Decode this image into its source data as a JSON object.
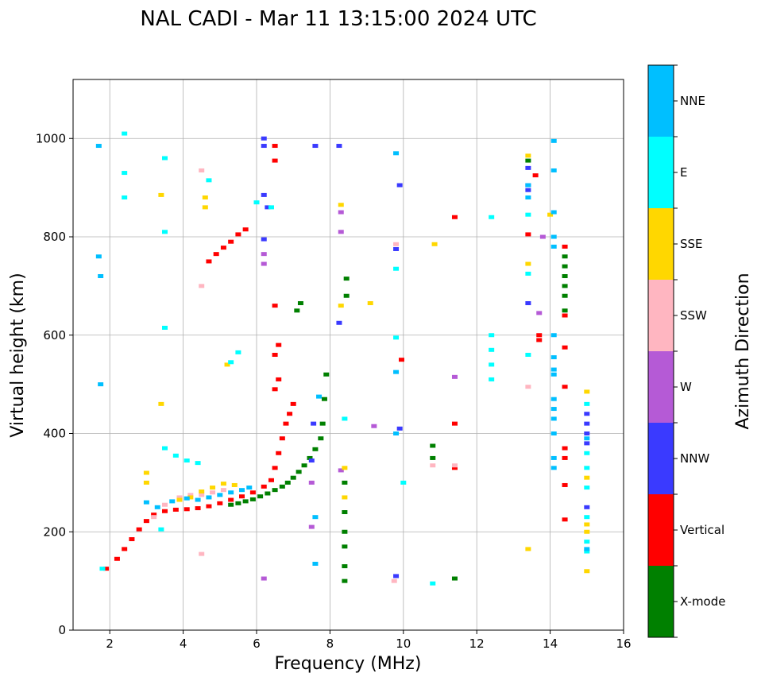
{
  "chart_data": {
    "type": "scatter",
    "title": "NAL CADI - Mar 11 13:15:00 2024 UTC",
    "xlabel": "Frequency (MHz)",
    "ylabel": "Virtual height (km)",
    "xlim": [
      1,
      16
    ],
    "ylim": [
      0,
      1120
    ],
    "xticks": [
      2,
      4,
      6,
      8,
      10,
      12,
      14,
      16
    ],
    "yticks": [
      0,
      200,
      400,
      600,
      800,
      1000
    ],
    "grid": true,
    "colorbar": {
      "title": "Azimuth Direction",
      "categories": [
        {
          "name": "X-mode",
          "color": "#008000"
        },
        {
          "name": "Vertical",
          "color": "#ff0000"
        },
        {
          "name": "NNW",
          "color": "#3a3aff"
        },
        {
          "name": "W",
          "color": "#b55ad6"
        },
        {
          "name": "SSW",
          "color": "#ffb6c1"
        },
        {
          "name": "SSE",
          "color": "#ffd700"
        },
        {
          "name": "E",
          "color": "#00ffff"
        },
        {
          "name": "NNE",
          "color": "#00bfff"
        }
      ]
    },
    "series": [
      {
        "name": "X-mode",
        "points": [
          [
            5.3,
            255
          ],
          [
            5.5,
            258
          ],
          [
            5.7,
            262
          ],
          [
            5.9,
            266
          ],
          [
            6.1,
            272
          ],
          [
            6.3,
            278
          ],
          [
            6.5,
            285
          ],
          [
            6.7,
            292
          ],
          [
            6.85,
            300
          ],
          [
            7.0,
            310
          ],
          [
            7.15,
            322
          ],
          [
            7.3,
            335
          ],
          [
            7.45,
            350
          ],
          [
            7.6,
            368
          ],
          [
            7.75,
            390
          ],
          [
            7.8,
            420
          ],
          [
            7.85,
            470
          ],
          [
            7.9,
            520
          ],
          [
            7.1,
            650
          ],
          [
            7.2,
            665
          ],
          [
            8.4,
            100
          ],
          [
            8.4,
            130
          ],
          [
            8.4,
            170
          ],
          [
            8.4,
            200
          ],
          [
            8.4,
            240
          ],
          [
            8.4,
            300
          ],
          [
            8.45,
            680
          ],
          [
            8.45,
            715
          ],
          [
            10.8,
            350
          ],
          [
            10.8,
            375
          ],
          [
            11.4,
            105
          ],
          [
            13.4,
            955
          ],
          [
            14.4,
            650
          ],
          [
            14.4,
            680
          ],
          [
            14.4,
            700
          ],
          [
            14.4,
            720
          ],
          [
            14.4,
            740
          ],
          [
            14.4,
            760
          ]
        ]
      },
      {
        "name": "Vertical",
        "points": [
          [
            1.9,
            125
          ],
          [
            2.2,
            145
          ],
          [
            2.4,
            165
          ],
          [
            2.6,
            185
          ],
          [
            2.8,
            205
          ],
          [
            3.0,
            222
          ],
          [
            3.2,
            235
          ],
          [
            3.5,
            242
          ],
          [
            3.8,
            245
          ],
          [
            4.1,
            246
          ],
          [
            4.4,
            248
          ],
          [
            4.7,
            252
          ],
          [
            5.0,
            258
          ],
          [
            5.3,
            265
          ],
          [
            5.6,
            272
          ],
          [
            5.9,
            280
          ],
          [
            6.2,
            292
          ],
          [
            6.4,
            305
          ],
          [
            6.5,
            330
          ],
          [
            6.6,
            360
          ],
          [
            6.7,
            390
          ],
          [
            6.8,
            420
          ],
          [
            6.9,
            440
          ],
          [
            7.0,
            460
          ],
          [
            6.5,
            490
          ],
          [
            6.6,
            510
          ],
          [
            6.5,
            560
          ],
          [
            6.6,
            580
          ],
          [
            6.5,
            660
          ],
          [
            4.7,
            750
          ],
          [
            4.9,
            765
          ],
          [
            5.1,
            778
          ],
          [
            5.3,
            790
          ],
          [
            5.5,
            805
          ],
          [
            5.7,
            815
          ],
          [
            6.5,
            955
          ],
          [
            6.5,
            985
          ],
          [
            9.95,
            550
          ],
          [
            11.4,
            330
          ],
          [
            11.4,
            420
          ],
          [
            11.4,
            840
          ],
          [
            13.6,
            925
          ],
          [
            13.4,
            805
          ],
          [
            13.7,
            590
          ],
          [
            13.7,
            600
          ],
          [
            14.4,
            225
          ],
          [
            14.4,
            295
          ],
          [
            14.4,
            350
          ],
          [
            14.4,
            370
          ],
          [
            14.4,
            495
          ],
          [
            14.4,
            575
          ],
          [
            14.4,
            640
          ],
          [
            14.4,
            780
          ]
        ]
      },
      {
        "name": "NNW",
        "points": [
          [
            6.2,
            1000
          ],
          [
            6.2,
            985
          ],
          [
            6.2,
            885
          ],
          [
            6.2,
            795
          ],
          [
            7.6,
            985
          ],
          [
            8.25,
            985
          ],
          [
            8.25,
            625
          ],
          [
            9.9,
            905
          ],
          [
            9.9,
            410
          ],
          [
            9.8,
            775
          ],
          [
            9.8,
            110
          ],
          [
            13.4,
            940
          ],
          [
            13.4,
            905
          ],
          [
            13.4,
            895
          ],
          [
            13.4,
            665
          ],
          [
            15.0,
            380
          ],
          [
            15.0,
            400
          ],
          [
            15.0,
            420
          ],
          [
            15.0,
            440
          ],
          [
            15.0,
            250
          ],
          [
            6.3,
            860
          ],
          [
            7.55,
            420
          ],
          [
            7.5,
            345
          ]
        ]
      },
      {
        "name": "W",
        "points": [
          [
            6.2,
            745
          ],
          [
            6.2,
            765
          ],
          [
            6.2,
            105
          ],
          [
            8.3,
            810
          ],
          [
            8.3,
            850
          ],
          [
            8.3,
            325
          ],
          [
            9.2,
            415
          ],
          [
            7.5,
            210
          ],
          [
            7.5,
            300
          ],
          [
            11.4,
            515
          ],
          [
            13.7,
            645
          ],
          [
            13.8,
            800
          ]
        ]
      },
      {
        "name": "SSW",
        "points": [
          [
            3.2,
            230
          ],
          [
            3.5,
            255
          ],
          [
            3.9,
            270
          ],
          [
            4.2,
            275
          ],
          [
            4.5,
            275
          ],
          [
            4.8,
            280
          ],
          [
            5.1,
            285
          ],
          [
            11.4,
            335
          ],
          [
            13.4,
            495
          ],
          [
            9.8,
            785
          ],
          [
            4.5,
            700
          ],
          [
            4.5,
            935
          ],
          [
            4.5,
            155
          ],
          [
            9.75,
            100
          ],
          [
            10.8,
            335
          ]
        ]
      },
      {
        "name": "SSE",
        "points": [
          [
            3.0,
            300
          ],
          [
            3.0,
            320
          ],
          [
            3.9,
            265
          ],
          [
            4.2,
            270
          ],
          [
            4.5,
            282
          ],
          [
            4.8,
            290
          ],
          [
            5.1,
            298
          ],
          [
            5.4,
            295
          ],
          [
            3.4,
            460
          ],
          [
            3.4,
            885
          ],
          [
            4.6,
            860
          ],
          [
            4.6,
            880
          ],
          [
            5.2,
            540
          ],
          [
            8.3,
            865
          ],
          [
            8.3,
            660
          ],
          [
            8.4,
            270
          ],
          [
            8.4,
            330
          ],
          [
            9.1,
            665
          ],
          [
            10.85,
            785
          ],
          [
            13.4,
            745
          ],
          [
            13.4,
            965
          ],
          [
            13.4,
            165
          ],
          [
            15.0,
            485
          ],
          [
            15.0,
            310
          ],
          [
            15.0,
            200
          ],
          [
            15.0,
            215
          ],
          [
            15.0,
            120
          ],
          [
            14.0,
            845
          ]
        ]
      },
      {
        "name": "E",
        "points": [
          [
            2.4,
            1010
          ],
          [
            2.4,
            930
          ],
          [
            2.4,
            880
          ],
          [
            3.5,
            370
          ],
          [
            3.8,
            355
          ],
          [
            4.1,
            345
          ],
          [
            4.4,
            340
          ],
          [
            3.5,
            960
          ],
          [
            3.5,
            810
          ],
          [
            3.5,
            615
          ],
          [
            4.7,
            915
          ],
          [
            5.3,
            545
          ],
          [
            5.5,
            565
          ],
          [
            6.0,
            870
          ],
          [
            6.4,
            860
          ],
          [
            8.4,
            430
          ],
          [
            9.8,
            735
          ],
          [
            9.8,
            595
          ],
          [
            10.0,
            300
          ],
          [
            10.8,
            95
          ],
          [
            12.4,
            840
          ],
          [
            12.4,
            600
          ],
          [
            12.4,
            570
          ],
          [
            12.4,
            540
          ],
          [
            12.4,
            510
          ],
          [
            13.4,
            845
          ],
          [
            13.4,
            725
          ],
          [
            13.4,
            560
          ],
          [
            15.0,
            160
          ],
          [
            15.0,
            180
          ],
          [
            15.0,
            230
          ],
          [
            15.0,
            290
          ],
          [
            15.0,
            330
          ],
          [
            15.0,
            360
          ],
          [
            15.0,
            460
          ],
          [
            3.4,
            205
          ],
          [
            1.8,
            125
          ]
        ]
      },
      {
        "name": "NNE",
        "points": [
          [
            1.7,
            985
          ],
          [
            1.7,
            760
          ],
          [
            1.75,
            720
          ],
          [
            1.75,
            500
          ],
          [
            3.0,
            260
          ],
          [
            3.3,
            250
          ],
          [
            3.7,
            262
          ],
          [
            4.1,
            268
          ],
          [
            4.4,
            265
          ],
          [
            4.7,
            270
          ],
          [
            5.0,
            275
          ],
          [
            5.3,
            280
          ],
          [
            5.6,
            285
          ],
          [
            5.8,
            290
          ],
          [
            7.7,
            475
          ],
          [
            7.6,
            230
          ],
          [
            7.6,
            135
          ],
          [
            9.8,
            970
          ],
          [
            9.8,
            525
          ],
          [
            9.8,
            400
          ],
          [
            14.1,
            995
          ],
          [
            14.1,
            935
          ],
          [
            14.1,
            850
          ],
          [
            14.1,
            800
          ],
          [
            14.1,
            780
          ],
          [
            14.1,
            600
          ],
          [
            14.1,
            555
          ],
          [
            14.1,
            530
          ],
          [
            14.1,
            520
          ],
          [
            14.1,
            470
          ],
          [
            14.1,
            450
          ],
          [
            14.1,
            430
          ],
          [
            14.1,
            400
          ],
          [
            14.1,
            350
          ],
          [
            14.1,
            330
          ],
          [
            13.4,
            905
          ],
          [
            13.4,
            880
          ],
          [
            15.0,
            390
          ],
          [
            15.0,
            165
          ]
        ]
      }
    ]
  }
}
